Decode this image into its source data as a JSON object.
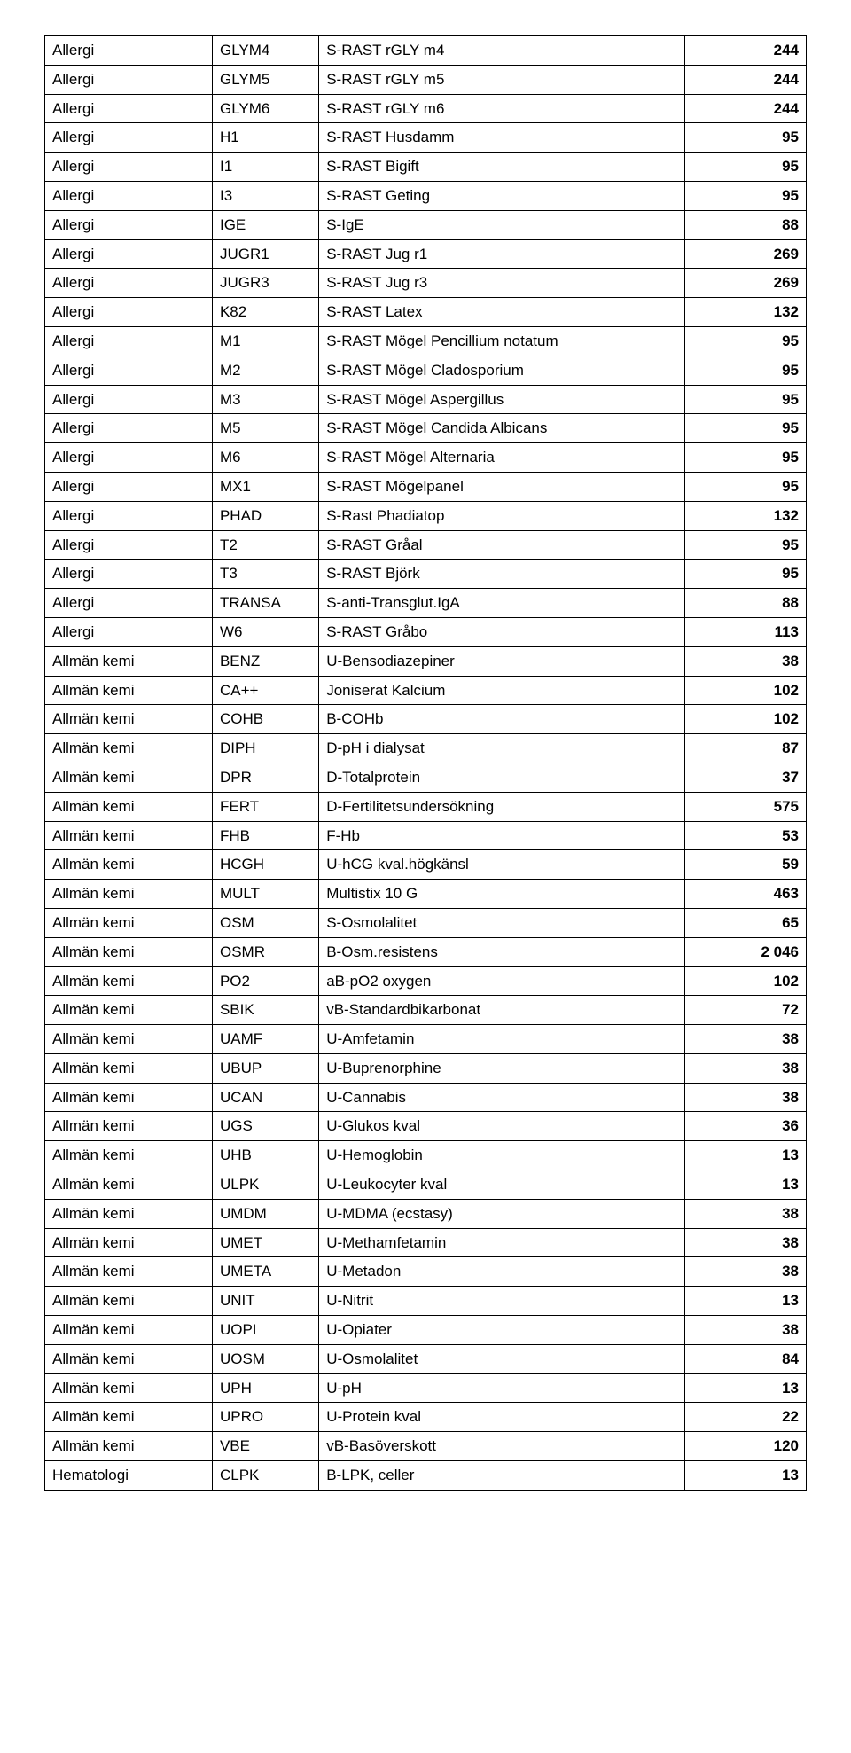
{
  "table": {
    "rows": [
      {
        "category": "Allergi",
        "code": "GLYM4",
        "desc": "S-RAST rGLY m4",
        "value": "244"
      },
      {
        "category": "Allergi",
        "code": "GLYM5",
        "desc": "S-RAST rGLY m5",
        "value": "244"
      },
      {
        "category": "Allergi",
        "code": "GLYM6",
        "desc": "S-RAST rGLY m6",
        "value": "244"
      },
      {
        "category": "Allergi",
        "code": "H1",
        "desc": "S-RAST Husdamm",
        "value": "95"
      },
      {
        "category": "Allergi",
        "code": "I1",
        "desc": "S-RAST Bigift",
        "value": "95"
      },
      {
        "category": "Allergi",
        "code": "I3",
        "desc": "S-RAST Geting",
        "value": "95"
      },
      {
        "category": "Allergi",
        "code": "IGE",
        "desc": "S-IgE",
        "value": "88"
      },
      {
        "category": "Allergi",
        "code": "JUGR1",
        "desc": "S-RAST Jug r1",
        "value": "269"
      },
      {
        "category": "Allergi",
        "code": "JUGR3",
        "desc": "S-RAST Jug r3",
        "value": "269"
      },
      {
        "category": "Allergi",
        "code": "K82",
        "desc": "S-RAST Latex",
        "value": "132"
      },
      {
        "category": "Allergi",
        "code": "M1",
        "desc": "S-RAST Mögel Pencillium notatum",
        "value": "95"
      },
      {
        "category": "Allergi",
        "code": "M2",
        "desc": "S-RAST Mögel Cladosporium",
        "value": "95"
      },
      {
        "category": "Allergi",
        "code": "M3",
        "desc": "S-RAST Mögel Aspergillus",
        "value": "95"
      },
      {
        "category": "Allergi",
        "code": "M5",
        "desc": "S-RAST Mögel Candida Albicans",
        "value": "95"
      },
      {
        "category": "Allergi",
        "code": "M6",
        "desc": "S-RAST Mögel Alternaria",
        "value": "95"
      },
      {
        "category": "Allergi",
        "code": "MX1",
        "desc": "S-RAST Mögelpanel",
        "value": "95"
      },
      {
        "category": "Allergi",
        "code": "PHAD",
        "desc": "S-Rast Phadiatop",
        "value": "132"
      },
      {
        "category": "Allergi",
        "code": "T2",
        "desc": "S-RAST Gråal",
        "value": "95"
      },
      {
        "category": "Allergi",
        "code": "T3",
        "desc": "S-RAST Björk",
        "value": "95"
      },
      {
        "category": "Allergi",
        "code": "TRANSA",
        "desc": "S-anti-Transglut.IgA",
        "value": "88"
      },
      {
        "category": "Allergi",
        "code": "W6",
        "desc": "S-RAST Gråbo",
        "value": "113"
      },
      {
        "category": "Allmän kemi",
        "code": "BENZ",
        "desc": "U-Bensodiazepiner",
        "value": "38"
      },
      {
        "category": "Allmän kemi",
        "code": "CA++",
        "desc": "Joniserat Kalcium",
        "value": "102"
      },
      {
        "category": "Allmän kemi",
        "code": "COHB",
        "desc": "B-COHb",
        "value": "102"
      },
      {
        "category": "Allmän kemi",
        "code": "DIPH",
        "desc": "D-pH i dialysat",
        "value": "87"
      },
      {
        "category": "Allmän kemi",
        "code": "DPR",
        "desc": "D-Totalprotein",
        "value": "37"
      },
      {
        "category": "Allmän kemi",
        "code": "FERT",
        "desc": "D-Fertilitetsundersökning",
        "value": "575"
      },
      {
        "category": "Allmän kemi",
        "code": "FHB",
        "desc": "F-Hb",
        "value": "53"
      },
      {
        "category": "Allmän kemi",
        "code": "HCGH",
        "desc": "U-hCG kval.högkänsl",
        "value": "59"
      },
      {
        "category": "Allmän kemi",
        "code": "MULT",
        "desc": "Multistix 10 G",
        "value": "463"
      },
      {
        "category": "Allmän kemi",
        "code": "OSM",
        "desc": "S-Osmolalitet",
        "value": "65"
      },
      {
        "category": "Allmän kemi",
        "code": "OSMR",
        "desc": "B-Osm.resistens",
        "value": "2 046"
      },
      {
        "category": "Allmän kemi",
        "code": "PO2",
        "desc": "aB-pO2 oxygen",
        "value": "102"
      },
      {
        "category": "Allmän kemi",
        "code": "SBIK",
        "desc": "vB-Standardbikarbonat",
        "value": "72"
      },
      {
        "category": "Allmän kemi",
        "code": "UAMF",
        "desc": "U-Amfetamin",
        "value": "38"
      },
      {
        "category": "Allmän kemi",
        "code": "UBUP",
        "desc": "U-Buprenorphine",
        "value": "38"
      },
      {
        "category": "Allmän kemi",
        "code": "UCAN",
        "desc": "U-Cannabis",
        "value": "38"
      },
      {
        "category": "Allmän kemi",
        "code": "UGS",
        "desc": "U-Glukos kval",
        "value": "36"
      },
      {
        "category": "Allmän kemi",
        "code": "UHB",
        "desc": "U-Hemoglobin",
        "value": "13"
      },
      {
        "category": "Allmän kemi",
        "code": "ULPK",
        "desc": "U-Leukocyter kval",
        "value": "13"
      },
      {
        "category": "Allmän kemi",
        "code": "UMDM",
        "desc": "U-MDMA (ecstasy)",
        "value": "38"
      },
      {
        "category": "Allmän kemi",
        "code": "UMET",
        "desc": "U-Methamfetamin",
        "value": "38"
      },
      {
        "category": "Allmän kemi",
        "code": "UMETA",
        "desc": "U-Metadon",
        "value": "38"
      },
      {
        "category": "Allmän kemi",
        "code": "UNIT",
        "desc": "U-Nitrit",
        "value": "13"
      },
      {
        "category": "Allmän kemi",
        "code": "UOPI",
        "desc": "U-Opiater",
        "value": "38"
      },
      {
        "category": "Allmän kemi",
        "code": "UOSM",
        "desc": "U-Osmolalitet",
        "value": "84"
      },
      {
        "category": "Allmän kemi",
        "code": "UPH",
        "desc": "U-pH",
        "value": "13"
      },
      {
        "category": "Allmän kemi",
        "code": "UPRO",
        "desc": "U-Protein kval",
        "value": "22"
      },
      {
        "category": "Allmän kemi",
        "code": "VBE",
        "desc": "vB-Basöverskott",
        "value": "120"
      },
      {
        "category": "Hematologi",
        "code": "CLPK",
        "desc": "B-LPK, celler",
        "value": "13"
      }
    ]
  },
  "style": {
    "background_color": "#ffffff",
    "border_color": "#000000",
    "text_color": "#000000",
    "font_family": "Arial",
    "font_size_pt": 13,
    "value_font_weight": "bold",
    "col_widths": {
      "category": "22%",
      "code": "14%",
      "desc": "48%",
      "value": "16%"
    },
    "value_align": "right"
  }
}
